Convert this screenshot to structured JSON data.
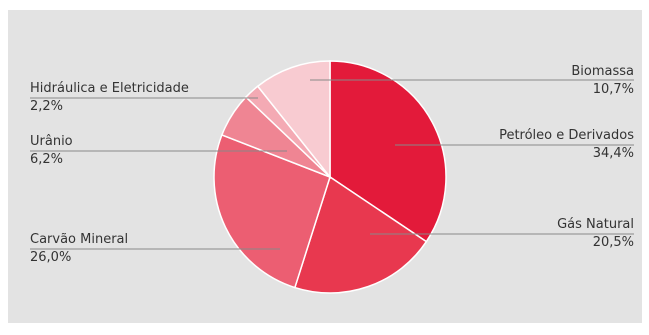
{
  "chart_data": {
    "type": "pie",
    "series": [
      {
        "name": "Petróleo e Derivados",
        "value": 34.4,
        "label": "34,4%",
        "color": "#e31a3a"
      },
      {
        "name": "Gás Natural",
        "value": 20.5,
        "label": "20,5%",
        "color": "#e8384f"
      },
      {
        "name": "Carvão Mineral",
        "value": 26.0,
        "label": "26,0%",
        "color": "#ec5e72"
      },
      {
        "name": "Urânio",
        "value": 6.2,
        "label": "6,2%",
        "color": "#ef8593"
      },
      {
        "name": "Hidráulica e Eletricidade",
        "value": 2.2,
        "label": "2,2%",
        "color": "#f4aab4"
      },
      {
        "name": "Biomassa",
        "value": 10.7,
        "label": "10,7%",
        "color": "#f8cbd1"
      }
    ],
    "start_angle_deg": 0,
    "direction": "clockwise",
    "leader_color": "#888888",
    "background": "#e3e3e3"
  }
}
